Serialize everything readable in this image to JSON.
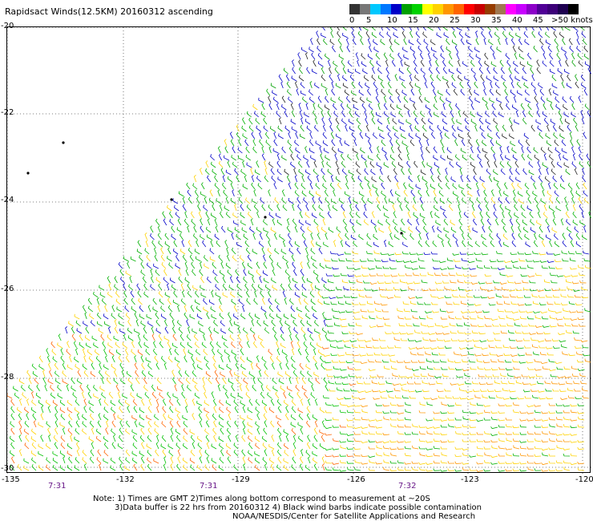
{
  "title": "Rapidsact Winds(12.5KM) 20160312 ascending",
  "legend": {
    "labels": [
      "0",
      "5",
      "10",
      "15",
      "20",
      "25",
      "30",
      "35",
      "40",
      "45",
      ">50 knots"
    ],
    "colors": [
      "#333333",
      "#777777",
      "#00c8ff",
      "#0078ff",
      "#0000c8",
      "#00a000",
      "#00d200",
      "#ffff00",
      "#ffd200",
      "#ff9600",
      "#ff6400",
      "#ff0000",
      "#c80000",
      "#963c00",
      "#a07850",
      "#ff00ff",
      "#c800ff",
      "#8c00c8",
      "#500096",
      "#3c0078",
      "#1e0050",
      "#000000"
    ]
  },
  "axes": {
    "lat_labels": [
      "-20",
      "-22",
      "-24",
      "-26",
      "-28",
      "-30"
    ],
    "lon_labels": [
      "-135",
      "-132",
      "-129",
      "-126",
      "-123",
      "-120"
    ],
    "times": [
      "7:31",
      "7:31",
      "7:32"
    ]
  },
  "notes": {
    "line1": "Note: 1) Times are GMT 2)Times along bottom correspond to measurement at ~20S",
    "line2": "3)Data buffer is 22 hrs from 20160312 4) Black wind barbs indicate possible contamination",
    "line3": "NOAA/NESDIS/Center for Satellite Applications and Research"
  }
}
